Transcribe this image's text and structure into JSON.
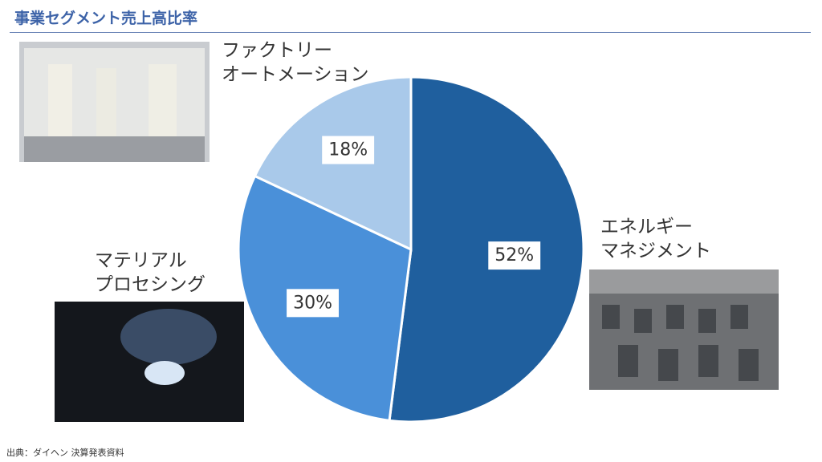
{
  "chart_data": {
    "type": "pie",
    "title": "事業セグメント売上高比率",
    "categories": [
      "エネルギー\nマネジメント",
      "マテリアル\nプロセシング",
      "ファクトリー\nオートメーション"
    ],
    "values": [
      52,
      30,
      18
    ],
    "value_labels": [
      "52%",
      "30%",
      "18%"
    ],
    "colors": [
      "#1f5f9e",
      "#4a90d9",
      "#a9c9ea"
    ]
  },
  "source": "出典：ダイヘン 決算発表資料"
}
